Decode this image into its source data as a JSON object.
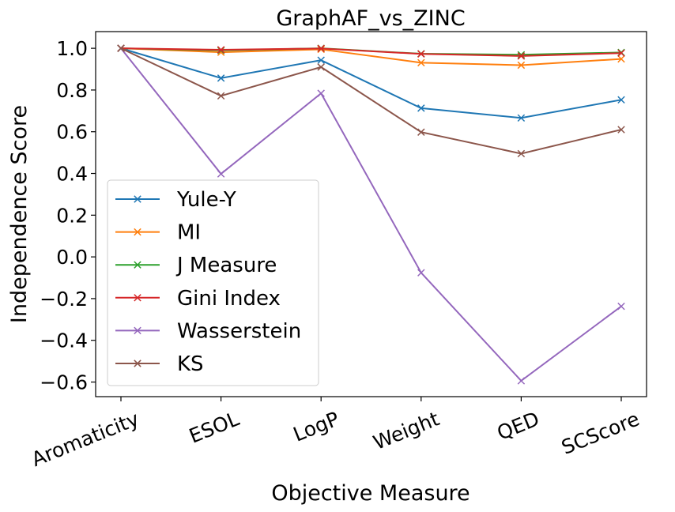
{
  "chart_data": {
    "type": "line",
    "title": "GraphAF_vs_ZINC",
    "xlabel": "Objective Measure",
    "ylabel": "Independence Score",
    "categories": [
      "Aromaticity",
      "ESOL",
      "LogP",
      "Weight",
      "QED",
      "SCScore"
    ],
    "ylim": [
      -0.67,
      1.08
    ],
    "yticks": [
      -0.6,
      -0.4,
      -0.2,
      0.0,
      0.2,
      0.4,
      0.6,
      0.8,
      1.0
    ],
    "ytick_labels": [
      "−0.6",
      "−0.4",
      "−0.2",
      "0.0",
      "0.2",
      "0.4",
      "0.6",
      "0.8",
      "1.0"
    ],
    "marker": "x",
    "grid": false,
    "legend_position": "lower-left",
    "series": [
      {
        "name": "Yule-Y",
        "color": "#1f77b4",
        "values": [
          1.0,
          0.857,
          0.943,
          0.713,
          0.666,
          0.753
        ]
      },
      {
        "name": "MI",
        "color": "#ff7f0e",
        "values": [
          1.0,
          0.981,
          0.995,
          0.931,
          0.919,
          0.949
        ]
      },
      {
        "name": "J Measure",
        "color": "#2ca02c",
        "values": [
          1.0,
          0.99,
          1.0,
          0.974,
          0.969,
          0.98
        ]
      },
      {
        "name": "Gini Index",
        "color": "#d62728",
        "values": [
          1.0,
          0.993,
          0.999,
          0.973,
          0.963,
          0.977
        ]
      },
      {
        "name": "Wasserstein",
        "color": "#9467bd",
        "values": [
          1.0,
          0.398,
          0.784,
          -0.076,
          -0.594,
          -0.237
        ]
      },
      {
        "name": "KS",
        "color": "#8c564b",
        "values": [
          1.0,
          0.772,
          0.91,
          0.598,
          0.495,
          0.61
        ]
      }
    ]
  }
}
